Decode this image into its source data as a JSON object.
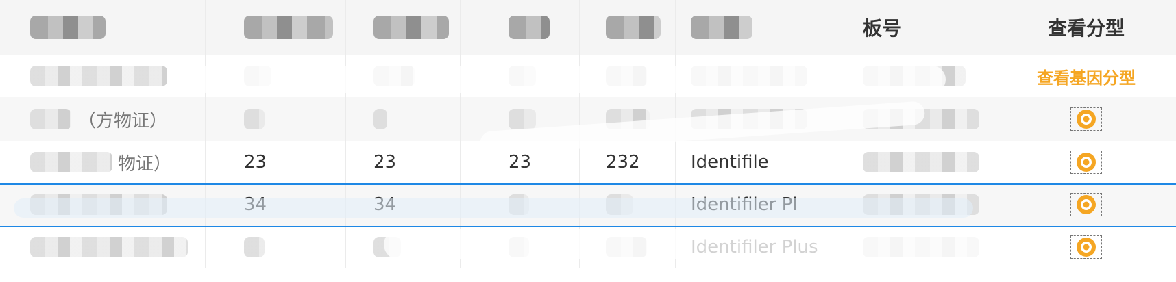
{
  "table": {
    "headers": {
      "col1": "",
      "col2": "",
      "col3": "",
      "col4": "",
      "col5": "",
      "col6": "",
      "plate": "板号",
      "genotype": "查看分型"
    },
    "rows": [
      {
        "c1": "",
        "c2": "",
        "c3": "",
        "c4": "",
        "c5": "",
        "c6": "",
        "c7": "",
        "action_label": "查看基因分型",
        "action_type": "link"
      },
      {
        "c1": "（方物证）",
        "c2": "",
        "c3": "",
        "c4": "",
        "c5": "",
        "c6": "",
        "c7": "",
        "action_type": "eye-icon"
      },
      {
        "c1": "物证）",
        "c2": "23",
        "c3": "23",
        "c4": "23",
        "c5": "232",
        "c6": "Identifile",
        "c7": "",
        "action_type": "eye-icon"
      },
      {
        "c1": "",
        "c2": "34",
        "c3": "34",
        "c4": "",
        "c5": "",
        "c6": "Identifiler Pl",
        "c7": "",
        "action_type": "eye-icon"
      },
      {
        "c1": "",
        "c2": "",
        "c3": "",
        "c4": "",
        "c5": "",
        "c6": "Identifiler Plus",
        "c7": "",
        "action_type": "eye-icon"
      }
    ]
  },
  "colors": {
    "accent_orange": "#f5a623",
    "selection_blue": "#1e88e5",
    "header_bg": "#f5f5f5"
  },
  "icons": {
    "eye": "eye-icon"
  }
}
